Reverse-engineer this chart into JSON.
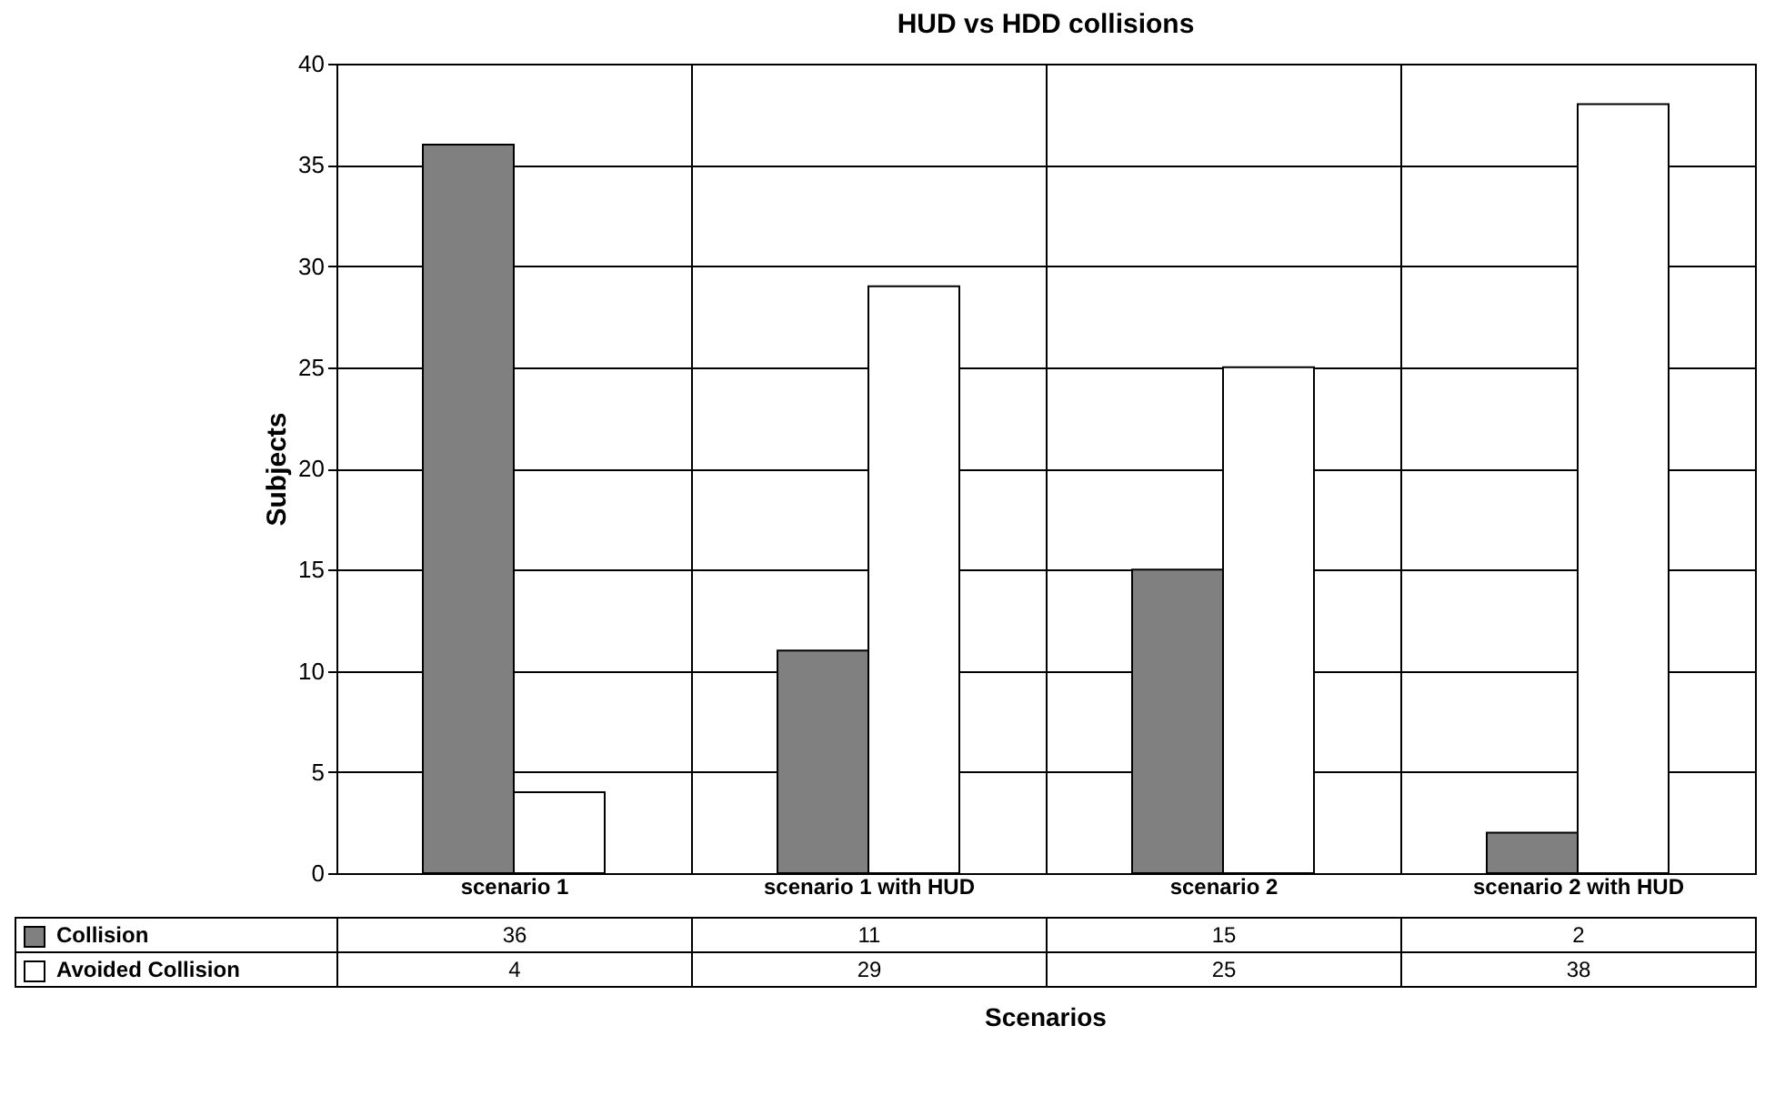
{
  "chart_data": {
    "type": "bar",
    "title": "HUD vs HDD collisions",
    "xlabel": "Scenarios",
    "ylabel": "Subjects",
    "categories": [
      "scenario 1",
      "scenario 1 with HUD",
      "scenario 2",
      "scenario 2 with HUD"
    ],
    "series": [
      {
        "name": "Collision",
        "color": "#808080",
        "values": [
          36,
          11,
          15,
          2
        ]
      },
      {
        "name": "Avoided Collision",
        "color": "#ffffff",
        "values": [
          4,
          29,
          25,
          38
        ]
      }
    ],
    "ylim": [
      0,
      40
    ],
    "yticks": [
      0,
      5,
      10,
      15,
      20,
      25,
      30,
      35,
      40
    ],
    "grid": true,
    "legend": "bottom left",
    "data_labels": true
  }
}
